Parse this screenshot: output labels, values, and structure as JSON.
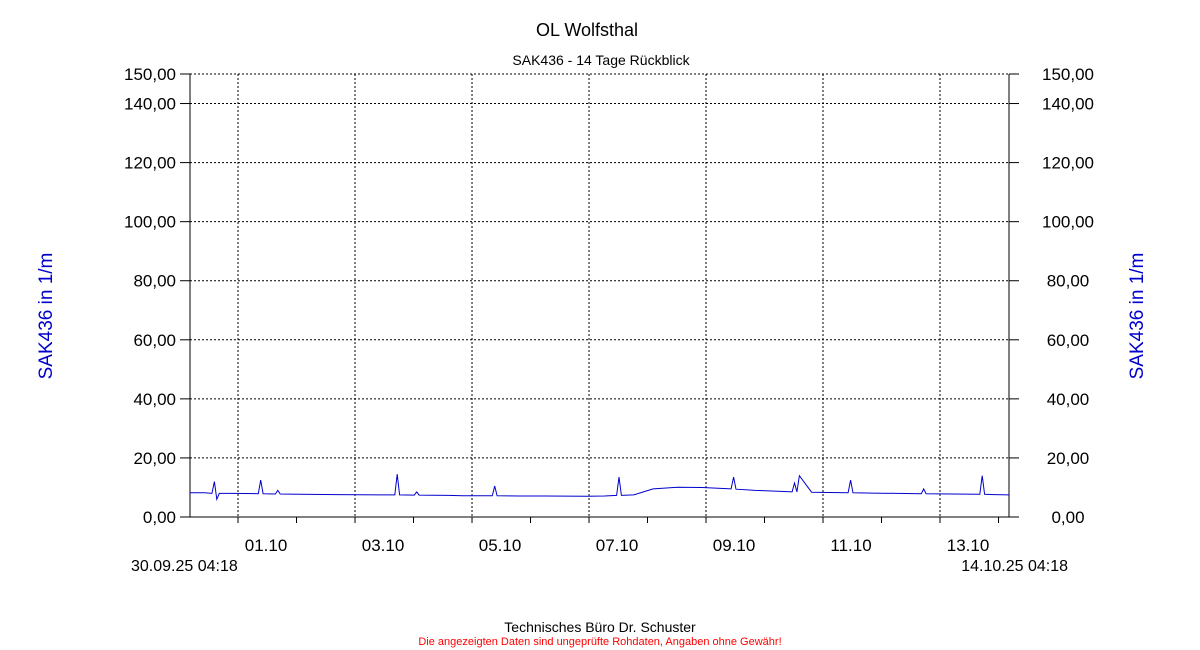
{
  "chart_data": {
    "type": "line",
    "title": "OL Wolfsthal",
    "subtitle": "SAK436 - 14 Tage Rückblick",
    "ylabel_left": "SAK436 in 1/m",
    "ylabel_right": "SAK436 in 1/m",
    "ylim": [
      0,
      150
    ],
    "y_ticks": [
      "0,00",
      "20,00",
      "40,00",
      "60,00",
      "80,00",
      "100,00",
      "120,00",
      "140,00",
      "150,00"
    ],
    "y_tick_values": [
      0,
      20,
      40,
      60,
      80,
      100,
      120,
      140,
      150
    ],
    "x_range_start_label": "30.09.25 04:18",
    "x_range_end_label": "14.10.25 04:18",
    "xlim_hours": [
      0,
      336
    ],
    "x_ticks": [
      {
        "label": "01.10",
        "hours": 19.7
      },
      {
        "label": "03.10",
        "hours": 67.7
      },
      {
        "label": "05.10",
        "hours": 115.7
      },
      {
        "label": "07.10",
        "hours": 163.7
      },
      {
        "label": "09.10",
        "hours": 211.7
      },
      {
        "label": "11.10",
        "hours": 259.7
      },
      {
        "label": "13.10",
        "hours": 307.7
      }
    ],
    "grid": true,
    "line_color": "#0000cc",
    "series": [
      {
        "x": [
          0,
          6,
          9,
          10,
          11,
          12,
          18,
          28,
          29,
          30,
          35,
          36,
          37,
          45,
          60,
          78,
          84,
          85,
          86,
          92,
          93,
          94,
          106,
          112,
          124,
          125,
          126,
          135,
          145,
          163,
          170,
          175,
          176,
          177,
          182,
          186,
          190,
          200,
          210,
          220,
          222,
          223,
          224,
          232,
          245,
          247,
          248,
          249,
          250,
          255,
          262,
          270,
          271,
          272,
          280,
          290,
          300,
          301,
          302,
          312,
          324,
          325,
          326,
          330,
          336
        ],
        "y": [
          8.2,
          8.2,
          8.0,
          12.0,
          6.0,
          8.0,
          8.0,
          7.9,
          12.5,
          7.9,
          7.8,
          9.0,
          7.8,
          7.7,
          7.6,
          7.5,
          7.5,
          14.5,
          7.5,
          7.4,
          8.5,
          7.4,
          7.3,
          7.2,
          7.2,
          10.5,
          7.2,
          7.1,
          7.1,
          7.0,
          7.1,
          7.3,
          13.5,
          7.3,
          7.5,
          8.5,
          9.5,
          10.1,
          10.0,
          9.6,
          9.5,
          13.5,
          9.4,
          9.0,
          8.6,
          8.5,
          11.5,
          8.5,
          14.0,
          8.4,
          8.3,
          8.2,
          12.5,
          8.2,
          8.1,
          8.0,
          7.9,
          9.5,
          7.9,
          7.8,
          7.7,
          14.0,
          7.7,
          7.6,
          7.5
        ]
      }
    ]
  },
  "footer": {
    "credit": "Technisches Büro Dr. Schuster",
    "disclaimer": "Die angezeigten Daten sind ungeprüfte Rohdaten, Angaben ohne Gewähr!"
  }
}
